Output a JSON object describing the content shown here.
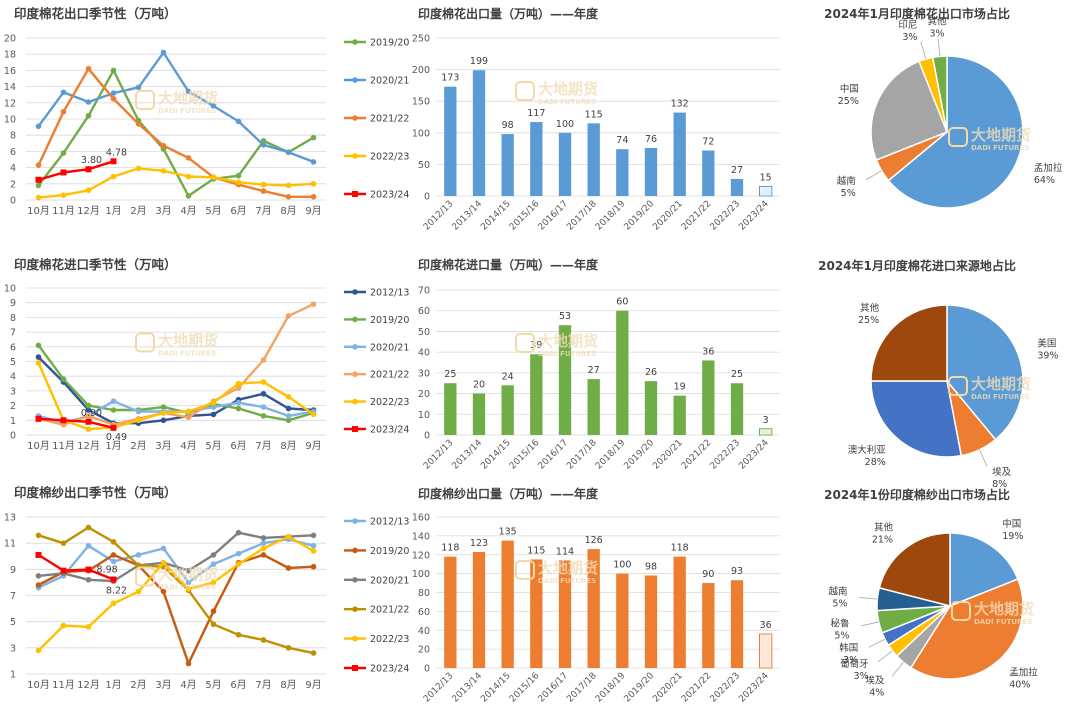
{
  "colors": {
    "s_2012_13": "#5B9BD5",
    "s_2019_20": "#70AD47",
    "s_2020_21": "#5B9BD5",
    "s_2021_22": "#ED7D31",
    "s_2022_23": "#FFC000",
    "s_2023_24": "#FF0000",
    "bar_blue": "#5B9BD5",
    "bar_green": "#70AD47",
    "bar_orange": "#ED7D31",
    "grid": "#D9D9D9",
    "axis_text": "#595959"
  },
  "watermark": {
    "cn": "大地期货",
    "en": "DADI FUTURES"
  },
  "chart_data": [
    {
      "id": "cotton-export-seasonal",
      "type": "line",
      "title": "印度棉花出口季节性（万吨）",
      "categories": [
        "10月",
        "11月",
        "12月",
        "1月",
        "2月",
        "3月",
        "4月",
        "5月",
        "6月",
        "7月",
        "8月",
        "9月"
      ],
      "ylim": [
        0,
        20
      ],
      "yticks": [
        0,
        2,
        4,
        6,
        8,
        10,
        12,
        14,
        16,
        18,
        20
      ],
      "legend": "right",
      "series": [
        {
          "name": "2019/20",
          "color": "#70AD47",
          "values": [
            1.8,
            5.8,
            10.4,
            16,
            9.8,
            6.3,
            0.5,
            2.6,
            3.0,
            7.3,
            5.9,
            7.7
          ]
        },
        {
          "name": "2020/21",
          "color": "#5B9BD5",
          "values": [
            9.1,
            13.3,
            12.1,
            13.2,
            13.9,
            18.2,
            13.4,
            11.6,
            9.7,
            6.8,
            5.9,
            4.7
          ]
        },
        {
          "name": "2021/22",
          "color": "#ED7D31",
          "values": [
            4.3,
            10.9,
            16.2,
            12.5,
            9.4,
            6.7,
            5.2,
            2.8,
            1.9,
            1.1,
            0.4,
            0.4
          ]
        },
        {
          "name": "2022/23",
          "color": "#FFC000",
          "values": [
            0.3,
            0.6,
            1.2,
            2.9,
            3.9,
            3.6,
            2.9,
            2.8,
            2.2,
            1.9,
            1.8,
            2.0
          ]
        },
        {
          "name": "2023/24",
          "color": "#FF0000",
          "values": [
            2.5,
            3.4,
            3.8,
            4.78,
            null,
            null,
            null,
            null,
            null,
            null,
            null,
            null
          ]
        }
      ],
      "labels": [
        {
          "series": "2023/24",
          "index": 2,
          "text": "3.80"
        },
        {
          "series": "2023/24",
          "index": 3,
          "text": "4.78"
        }
      ]
    },
    {
      "id": "cotton-export-annual",
      "type": "bar",
      "title": "印度棉花出口量（万吨）——年度",
      "categories": [
        "2012/13",
        "2013/14",
        "2014/15",
        "2015/16",
        "2016/17",
        "2017/18",
        "2018/19",
        "2019/20",
        "2020/21",
        "2021/22",
        "2022/23",
        "2023/24"
      ],
      "values": [
        173,
        199,
        98,
        117,
        100,
        115,
        74,
        76,
        132,
        72,
        27,
        15
      ],
      "ylim": [
        0,
        250
      ],
      "yticks": [
        0,
        50,
        100,
        150,
        200,
        250
      ],
      "color": "#5B9BD5",
      "last_light": true
    },
    {
      "id": "cotton-export-market-share",
      "type": "pie",
      "title": "2024年1月印度棉花出口市场占比",
      "slices": [
        {
          "label": "孟加拉",
          "value": 64,
          "pct": "64%",
          "color": "#5B9BD5"
        },
        {
          "label": "越南",
          "value": 5,
          "pct": "5%",
          "color": "#ED7D31"
        },
        {
          "label": "中国",
          "value": 25,
          "pct": "25%",
          "color": "#A5A5A5"
        },
        {
          "label": "印尼",
          "value": 3,
          "pct": "3%",
          "color": "#FFC000"
        },
        {
          "label": "其他",
          "value": 3,
          "pct": "3%",
          "color": "#70AD47"
        }
      ]
    },
    {
      "id": "cotton-import-seasonal",
      "type": "line",
      "title": "印度棉花进口季节性（万吨）",
      "categories": [
        "10月",
        "11月",
        "12月",
        "1月",
        "2月",
        "3月",
        "4月",
        "5月",
        "6月",
        "7月",
        "8月",
        "9月"
      ],
      "ylim": [
        0,
        10
      ],
      "yticks": [
        0,
        1,
        2,
        3,
        4,
        5,
        6,
        7,
        8,
        9,
        10
      ],
      "legend": "right",
      "series": [
        {
          "name": "2012/13",
          "color": "#2F5597",
          "values": [
            5.3,
            3.6,
            1.7,
            0.8,
            0.8,
            1.0,
            1.3,
            1.4,
            2.4,
            2.8,
            1.8,
            1.7
          ]
        },
        {
          "name": "2019/20",
          "color": "#70AD47",
          "values": [
            6.1,
            3.8,
            2.0,
            1.7,
            1.7,
            1.9,
            1.5,
            2.1,
            1.8,
            1.3,
            1.0,
            1.5
          ]
        },
        {
          "name": "2020/21",
          "color": "#7FB2E5",
          "values": [
            1.3,
            0.8,
            1.3,
            2.3,
            1.6,
            1.6,
            1.6,
            1.9,
            2.2,
            1.9,
            1.3,
            1.6
          ]
        },
        {
          "name": "2021/22",
          "color": "#F4A460",
          "values": [
            1.1,
            0.7,
            1.3,
            0.7,
            1.1,
            1.5,
            1.2,
            2.3,
            3.2,
            5.1,
            8.1,
            8.9
          ]
        },
        {
          "name": "2022/23",
          "color": "#FFC000",
          "values": [
            4.9,
            1.0,
            0.4,
            0.5,
            1.0,
            1.5,
            1.6,
            2.2,
            3.5,
            3.6,
            2.6,
            1.4
          ]
        },
        {
          "name": "2023/24",
          "color": "#FF0000",
          "values": [
            1.1,
            1.0,
            0.9,
            0.49,
            null,
            null,
            null,
            null,
            null,
            null,
            null,
            null
          ]
        }
      ],
      "labels": [
        {
          "series": "2023/24",
          "index": 2,
          "text": "0.90"
        },
        {
          "series": "2023/24",
          "index": 3,
          "text": "0.49"
        }
      ]
    },
    {
      "id": "cotton-import-annual",
      "type": "bar",
      "title": "印度棉花进口量（万吨）——年度",
      "categories": [
        "2012/13",
        "2013/14",
        "2014/15",
        "2015/16",
        "2016/17",
        "2017/18",
        "2018/19",
        "2019/20",
        "2020/21",
        "2021/22",
        "2022/23",
        "2023/24"
      ],
      "values": [
        25,
        20,
        24,
        39,
        53,
        27,
        60,
        26,
        19,
        36,
        25,
        3
      ],
      "ylim": [
        0,
        70
      ],
      "yticks": [
        0,
        10,
        20,
        30,
        40,
        50,
        60,
        70
      ],
      "color": "#70AD47",
      "last_light": true
    },
    {
      "id": "cotton-import-source-share",
      "type": "pie",
      "title": "2024年1月印度棉花进口来源地占比",
      "slices": [
        {
          "label": "美国",
          "value": 39,
          "pct": "39%",
          "color": "#5B9BD5"
        },
        {
          "label": "埃及",
          "value": 8,
          "pct": "8%",
          "color": "#ED7D31"
        },
        {
          "label": "澳大利亚",
          "value": 28,
          "pct": "28%",
          "color": "#4472C4"
        },
        {
          "label": "其他",
          "value": 25,
          "pct": "25%",
          "color": "#9E480E"
        }
      ]
    },
    {
      "id": "yarn-export-seasonal",
      "type": "line",
      "title": "印度棉纱出口季节性（万吨）",
      "categories": [
        "10月",
        "11月",
        "12月",
        "1月",
        "2月",
        "3月",
        "4月",
        "5月",
        "6月",
        "7月",
        "8月",
        "9月"
      ],
      "ylim": [
        1,
        13
      ],
      "yticks": [
        1,
        3,
        5,
        7,
        9,
        11,
        13
      ],
      "legend": "right",
      "series": [
        {
          "name": "2012/13",
          "color": "#7FB2E5",
          "values": [
            7.6,
            8.5,
            10.8,
            9.6,
            10.1,
            10.6,
            8.0,
            9.4,
            10.2,
            11.0,
            11.3,
            10.8
          ]
        },
        {
          "name": "2019/20",
          "color": "#C55A11",
          "values": [
            7.8,
            8.8,
            8.9,
            10.1,
            9.3,
            7.3,
            1.8,
            5.8,
            9.5,
            10.1,
            9.1,
            9.2
          ]
        },
        {
          "name": "2020/21",
          "color": "#7F7F7F",
          "values": [
            8.5,
            8.7,
            8.2,
            8.1,
            9.3,
            9.5,
            8.9,
            10.1,
            11.8,
            11.4,
            11.5,
            11.6
          ]
        },
        {
          "name": "2021/22",
          "color": "#BF9000",
          "values": [
            11.6,
            11.0,
            12.2,
            11.1,
            9.3,
            9.2,
            7.4,
            4.8,
            4.0,
            3.6,
            3.0,
            2.6
          ]
        },
        {
          "name": "2022/23",
          "color": "#FFC000",
          "values": [
            2.8,
            4.7,
            4.6,
            6.4,
            7.3,
            9.5,
            7.5,
            8.0,
            9.4,
            10.6,
            11.5,
            10.4
          ]
        },
        {
          "name": "2023/24",
          "color": "#FF0000",
          "values": [
            10.1,
            8.9,
            8.98,
            8.22,
            null,
            null,
            null,
            null,
            null,
            null,
            null,
            null
          ]
        }
      ],
      "labels": [
        {
          "series": "2023/24",
          "index": 2,
          "text": "8.98"
        },
        {
          "series": "2023/24",
          "index": 3,
          "text": "8.22"
        }
      ]
    },
    {
      "id": "yarn-export-annual",
      "type": "bar",
      "title": "印度棉纱出口量（万吨）——年度",
      "categories": [
        "2012/13",
        "2013/14",
        "2014/15",
        "2015/16",
        "2016/17",
        "2017/18",
        "2018/19",
        "2019/20",
        "2020/21",
        "2021/22",
        "2022/23",
        "2023/24"
      ],
      "values": [
        118,
        123,
        135,
        115,
        114,
        126,
        100,
        98,
        118,
        90,
        93,
        36
      ],
      "ylim": [
        0,
        160
      ],
      "yticks": [
        0,
        20,
        40,
        60,
        80,
        100,
        120,
        140,
        160
      ],
      "color": "#ED7D31",
      "last_light": true
    },
    {
      "id": "yarn-export-market-share",
      "type": "pie",
      "title": "2024年1份印度棉纱出口市场占比",
      "slices": [
        {
          "label": "中国",
          "value": 19,
          "pct": "19%",
          "color": "#5B9BD5"
        },
        {
          "label": "孟加拉",
          "value": 40,
          "pct": "40%",
          "color": "#ED7D31"
        },
        {
          "label": "埃及",
          "value": 4,
          "pct": "4%",
          "color": "#A5A5A5"
        },
        {
          "label": "葡萄牙",
          "value": 3,
          "pct": "3%",
          "color": "#FFC000"
        },
        {
          "label": "韩国",
          "value": 3,
          "pct": "3%",
          "color": "#4472C4"
        },
        {
          "label": "秘鲁",
          "value": 5,
          "pct": "5%",
          "color": "#70AD47"
        },
        {
          "label": "越南",
          "value": 5,
          "pct": "5%",
          "color": "#255E91"
        },
        {
          "label": "其他",
          "value": 21,
          "pct": "21%",
          "color": "#9E480E"
        }
      ]
    }
  ]
}
